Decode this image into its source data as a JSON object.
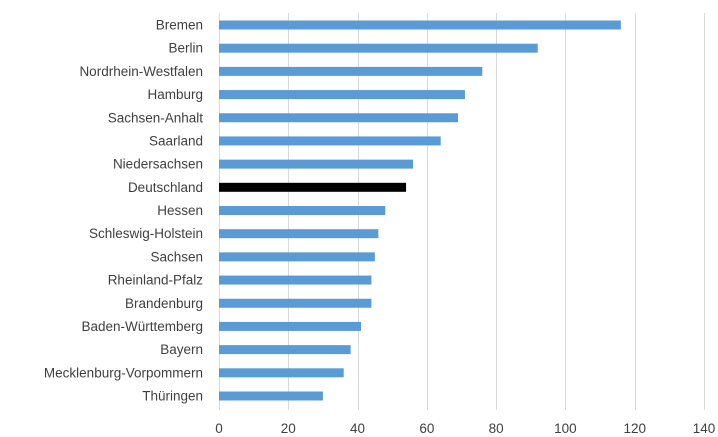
{
  "colors": {
    "bar": "#5b9bd5",
    "highlight": "#000000",
    "grid": "#d9d9d9",
    "text": "#404040"
  },
  "chart_data": {
    "type": "bar",
    "orientation": "horizontal",
    "title": "",
    "xlabel": "",
    "ylabel": "",
    "xlim": [
      0,
      140
    ],
    "x_ticks": [
      0,
      20,
      40,
      60,
      80,
      100,
      120,
      140
    ],
    "grid": "vertical",
    "categories": [
      "Bremen",
      "Berlin",
      "Nordrhein-Westfalen",
      "Hamburg",
      "Sachsen-Anhalt",
      "Saarland",
      "Niedersachsen",
      "Deutschland",
      "Hessen",
      "Schleswig-Holstein",
      "Sachsen",
      "Rheinland-Pfalz",
      "Brandenburg",
      "Baden-Württemberg",
      "Bayern",
      "Mecklenburg-Vorpommern",
      "Thüringen"
    ],
    "values": [
      116,
      92,
      76,
      71,
      69,
      64,
      56,
      54,
      48,
      46,
      45,
      44,
      44,
      41,
      38,
      36,
      30
    ],
    "highlight_category": "Deutschland"
  }
}
